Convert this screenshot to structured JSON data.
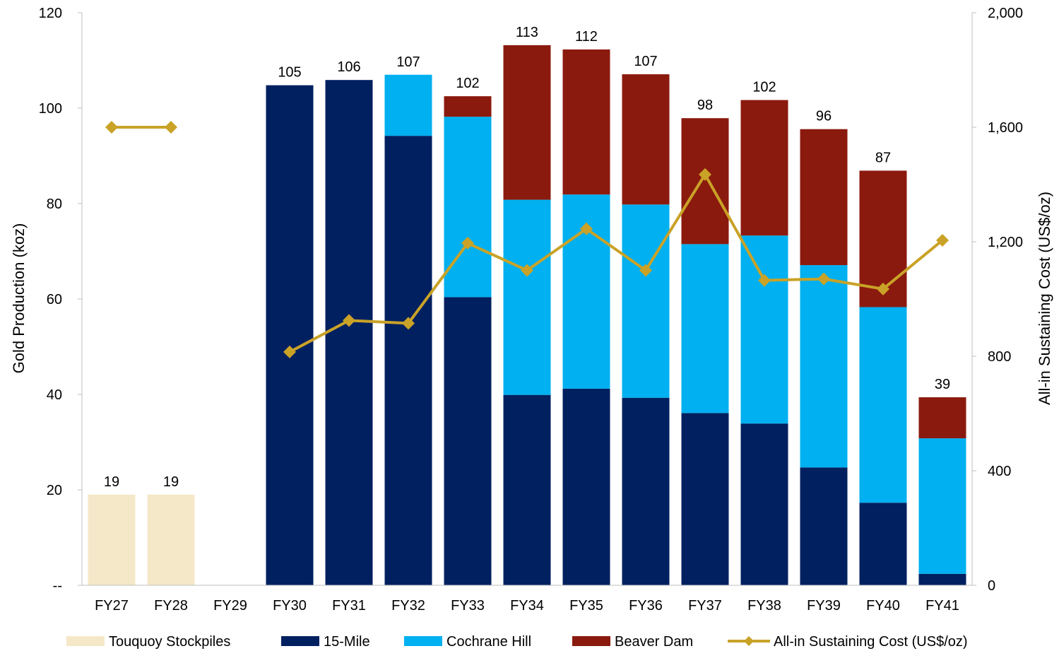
{
  "chart_data": {
    "type": "bar",
    "stacked": true,
    "categories": [
      "FY27",
      "FY28",
      "FY29",
      "FY30",
      "FY31",
      "FY32",
      "FY33",
      "FY34",
      "FY35",
      "FY36",
      "FY37",
      "FY38",
      "FY39",
      "FY40",
      "FY41"
    ],
    "series": [
      {
        "name": "Touquoy Stockpiles",
        "color": "#F5E8C8",
        "values": [
          19,
          19,
          0,
          0,
          0,
          0,
          0,
          0,
          0,
          0,
          0,
          0,
          0,
          0,
          0
        ]
      },
      {
        "name": "15-Mile",
        "color": "#002060",
        "values": [
          0,
          0,
          0,
          104.8,
          105.9,
          94.2,
          60.4,
          39.9,
          41.2,
          39.3,
          36.1,
          33.9,
          24.7,
          17.3,
          2.4
        ]
      },
      {
        "name": "Cochrane Hill",
        "color": "#00B0F0",
        "values": [
          0,
          0,
          0,
          0,
          0,
          12.8,
          37.8,
          40.9,
          40.7,
          40.5,
          35.4,
          39.4,
          42.4,
          41.0,
          28.4
        ]
      },
      {
        "name": "Beaver Dam",
        "color": "#8B1A0E",
        "values": [
          0,
          0,
          0,
          0,
          0,
          0,
          4.3,
          32.4,
          30.4,
          27.3,
          26.4,
          28.4,
          28.5,
          28.6,
          8.6
        ]
      }
    ],
    "totals_labels": [
      "19",
      "19",
      "",
      "105",
      "106",
      "107",
      "102",
      "113",
      "112",
      "107",
      "98",
      "102",
      "96",
      "87",
      "39"
    ],
    "totals": [
      19,
      19,
      0,
      104.8,
      105.9,
      107,
      102.5,
      113.2,
      112.3,
      107.1,
      97.9,
      101.7,
      95.6,
      86.9,
      39.4
    ],
    "line_series": {
      "name": "All-in Sustaining Cost (US$/oz)",
      "color": "#C9A227",
      "axis": "right",
      "segments": [
        {
          "categories": [
            "FY27",
            "FY28"
          ],
          "values": [
            1600,
            1600
          ]
        },
        {
          "categories": [
            "FY30",
            "FY31",
            "FY32",
            "FY33",
            "FY34",
            "FY35",
            "FY36",
            "FY37",
            "FY38",
            "FY39",
            "FY40",
            "FY41"
          ],
          "values": [
            815,
            925,
            915,
            1195,
            1100,
            1245,
            1100,
            1435,
            1065,
            1070,
            1035,
            1205
          ]
        }
      ]
    },
    "ylabel": "Gold Production (koz)",
    "y2label": "All-in Sustaining Cost (US$/oz)",
    "ylim": [
      0,
      120
    ],
    "y2lim": [
      0,
      2000
    ],
    "yticks": [
      0,
      20,
      40,
      60,
      80,
      100,
      120
    ],
    "ytick_labels": [
      "--",
      "20",
      "40",
      "60",
      "80",
      "100",
      "120"
    ],
    "y2ticks": [
      0,
      400,
      800,
      1200,
      1600,
      2000
    ],
    "y2tick_labels": [
      "0",
      "400",
      "800",
      "1,200",
      "1,600",
      "2,000"
    ],
    "grid": false,
    "legend_position": "bottom",
    "legend": [
      {
        "label": "Touquoy Stockpiles",
        "kind": "box",
        "color": "#F5E8C8"
      },
      {
        "label": "15-Mile",
        "kind": "box",
        "color": "#002060"
      },
      {
        "label": "Cochrane Hill",
        "kind": "box",
        "color": "#00B0F0"
      },
      {
        "label": "Beaver Dam",
        "kind": "box",
        "color": "#8B1A0E"
      },
      {
        "label": "All-in Sustaining Cost (US$/oz)",
        "kind": "line",
        "color": "#C9A227"
      }
    ]
  }
}
